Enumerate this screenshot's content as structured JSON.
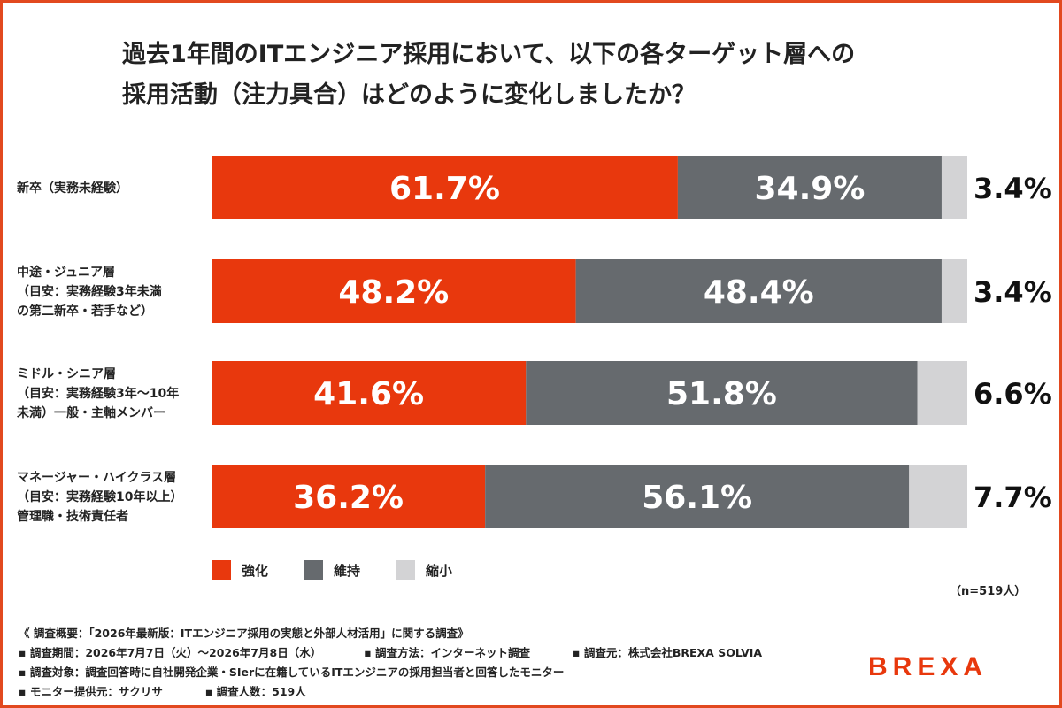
{
  "title": {
    "line1": "過去1年間のITエンジニア採用において、以下の各ターゲット層への",
    "line2": "採用活動（注力具合）はどのように変化しましたか？"
  },
  "chart_data": {
    "type": "bar",
    "orientation": "horizontal",
    "stacked": true,
    "percent_stacked": true,
    "categories": [
      [
        "新卒（実務未経験）"
      ],
      [
        "中途・ジュニア層",
        "（目安：実務経験3年未満",
        "の第二新卒・若手など）"
      ],
      [
        "ミドル・シニア層",
        "（目安：実務経験3年〜10年",
        "未満）一般・主軸メンバー"
      ],
      [
        "マネージャー・ハイクラス層",
        "（目安：実務経験10年以上）",
        "管理職・技術責任者"
      ]
    ],
    "series": [
      {
        "name": "強化",
        "values": [
          61.7,
          48.2,
          41.6,
          36.2
        ],
        "color": "#e8380d"
      },
      {
        "name": "維持",
        "values": [
          34.9,
          48.4,
          51.8,
          56.1
        ],
        "color": "#666a6e"
      },
      {
        "name": "縮小",
        "values": [
          3.4,
          3.4,
          6.6,
          7.7
        ],
        "color": "#d3d3d5"
      }
    ],
    "data_label_suffix": "%",
    "xlim": [
      0,
      100
    ],
    "grid": false,
    "legend_position": "bottom-left"
  },
  "legend": {
    "items": [
      {
        "label": "強化",
        "color": "#e8380d"
      },
      {
        "label": "維持",
        "color": "#666a6e"
      },
      {
        "label": "縮小",
        "color": "#d3d3d5"
      }
    ]
  },
  "sample_size": "（n=519人）",
  "footer": {
    "overview": "《 調査概要：「2026年最新版：ITエンジニア採用の実態と外部人材活用」に関する調査》",
    "period": "▪ 調査期間：2026年7月7日（火）〜2026年7月8日（水）",
    "method": "▪ 調査方法：インターネット調査",
    "source": "▪ 調査元：株式会社BREXA SOLVIA",
    "target": "▪ 調査対象：調査回答時に自社開発企業・SIerに在籍しているITエンジニアの採用担当者と回答したモニター",
    "provider": "▪ モニター提供元：サクリサ",
    "respondents": "▪ 調査人数：519人"
  },
  "logo": {
    "text": "BREXA",
    "color": "#e8380d"
  }
}
